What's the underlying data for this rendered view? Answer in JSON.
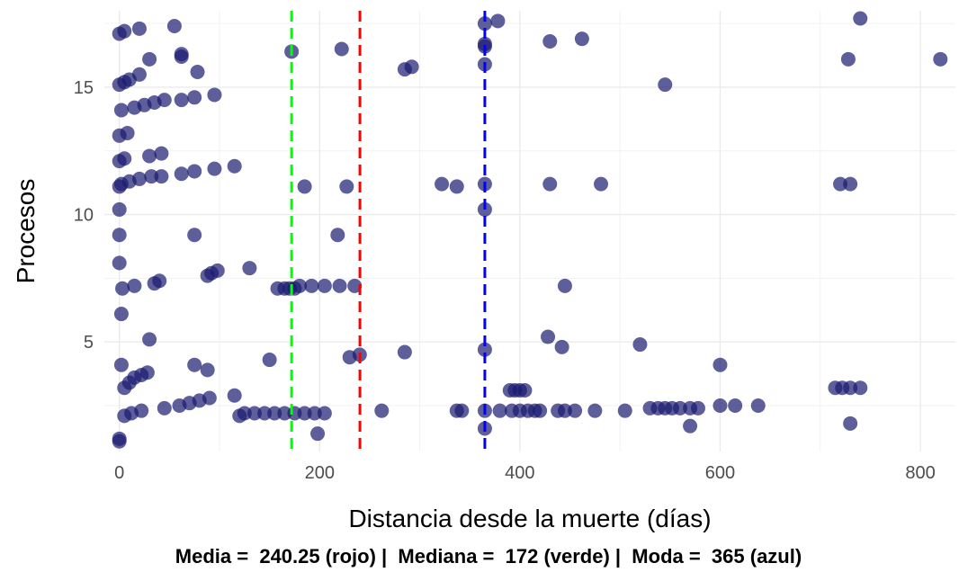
{
  "chart_data": {
    "type": "scatter",
    "xlabel": "Distancia desde la muerte (días)",
    "ylabel": "Procesos",
    "xlim": [
      -15,
      835
    ],
    "ylim": [
      0.7,
      18
    ],
    "x_ticks": [
      0,
      200,
      400,
      600,
      800
    ],
    "y_ticks": [
      5,
      10,
      15
    ],
    "grid": true,
    "point_color": "#191970",
    "point_opacity": 0.7,
    "reference_lines": [
      {
        "label": "Media",
        "value": 240.25,
        "color": "#ff0000"
      },
      {
        "label": "Mediana",
        "value": 172,
        "color": "#00ff00"
      },
      {
        "label": "Moda",
        "value": 365,
        "color": "#0000ff"
      }
    ],
    "caption": "Media =  240.25 (rojo) |  Mediana =  172 (verde) |  Moda =  365 (azul)",
    "points": [
      [
        0,
        17.1
      ],
      [
        5,
        17.2
      ],
      [
        20,
        17.3
      ],
      [
        55,
        17.4
      ],
      [
        365,
        17.5
      ],
      [
        378,
        17.6
      ],
      [
        740,
        17.7
      ],
      [
        172,
        16.4
      ],
      [
        222,
        16.5
      ],
      [
        365,
        16.6
      ],
      [
        365,
        16.7
      ],
      [
        430,
        16.8
      ],
      [
        462,
        16.9
      ],
      [
        30,
        16.1
      ],
      [
        62,
        16.2
      ],
      [
        62,
        16.3
      ],
      [
        728,
        16.1
      ],
      [
        820,
        16.1
      ],
      [
        0,
        15.1
      ],
      [
        5,
        15.2
      ],
      [
        10,
        15.3
      ],
      [
        20,
        15.5
      ],
      [
        78,
        15.6
      ],
      [
        285,
        15.7
      ],
      [
        292,
        15.8
      ],
      [
        365,
        15.9
      ],
      [
        545,
        15.1
      ],
      [
        2,
        14.1
      ],
      [
        15,
        14.2
      ],
      [
        25,
        14.3
      ],
      [
        35,
        14.4
      ],
      [
        45,
        14.5
      ],
      [
        62,
        14.5
      ],
      [
        75,
        14.6
      ],
      [
        95,
        14.7
      ],
      [
        0,
        13.1
      ],
      [
        8,
        13.2
      ],
      [
        0,
        12.1
      ],
      [
        5,
        12.2
      ],
      [
        30,
        12.3
      ],
      [
        42,
        12.4
      ],
      [
        115,
        11.9
      ],
      [
        0,
        11.1
      ],
      [
        2,
        11.2
      ],
      [
        10,
        11.3
      ],
      [
        20,
        11.4
      ],
      [
        32,
        11.5
      ],
      [
        42,
        11.5
      ],
      [
        62,
        11.6
      ],
      [
        75,
        11.7
      ],
      [
        95,
        11.8
      ],
      [
        185,
        11.1
      ],
      [
        227,
        11.1
      ],
      [
        322,
        11.2
      ],
      [
        337,
        11.1
      ],
      [
        365,
        11.2
      ],
      [
        430,
        11.2
      ],
      [
        481,
        11.2
      ],
      [
        720,
        11.2
      ],
      [
        730,
        11.2
      ],
      [
        0,
        10.2
      ],
      [
        365,
        10.2
      ],
      [
        0,
        9.2
      ],
      [
        75,
        9.2
      ],
      [
        218,
        9.2
      ],
      [
        0,
        8.1
      ],
      [
        130,
        7.9
      ],
      [
        88,
        7.6
      ],
      [
        92,
        7.7
      ],
      [
        98,
        7.8
      ],
      [
        3,
        7.1
      ],
      [
        15,
        7.2
      ],
      [
        35,
        7.3
      ],
      [
        40,
        7.4
      ],
      [
        158,
        7.1
      ],
      [
        165,
        7.1
      ],
      [
        170,
        7.1
      ],
      [
        175,
        7.1
      ],
      [
        180,
        7.2
      ],
      [
        192,
        7.2
      ],
      [
        205,
        7.2
      ],
      [
        220,
        7.2
      ],
      [
        235,
        7.2
      ],
      [
        445,
        7.2
      ],
      [
        2,
        6.1
      ],
      [
        30,
        5.1
      ],
      [
        428,
        5.2
      ],
      [
        520,
        4.9
      ],
      [
        150,
        4.3
      ],
      [
        285,
        4.6
      ],
      [
        230,
        4.4
      ],
      [
        240,
        4.5
      ],
      [
        365,
        4.7
      ],
      [
        442,
        4.8
      ],
      [
        600,
        4.1
      ],
      [
        2,
        4.1
      ],
      [
        75,
        4.1
      ],
      [
        88,
        3.9
      ],
      [
        5,
        3.2
      ],
      [
        10,
        3.4
      ],
      [
        15,
        3.6
      ],
      [
        22,
        3.7
      ],
      [
        28,
        3.8
      ],
      [
        390,
        3.1
      ],
      [
        395,
        3.1
      ],
      [
        400,
        3.1
      ],
      [
        405,
        3.1
      ],
      [
        715,
        3.2
      ],
      [
        722,
        3.2
      ],
      [
        730,
        3.2
      ],
      [
        740,
        3.2
      ],
      [
        115,
        2.9
      ],
      [
        90,
        2.8
      ],
      [
        80,
        2.7
      ],
      [
        70,
        2.6
      ],
      [
        60,
        2.5
      ],
      [
        45,
        2.4
      ],
      [
        5,
        2.1
      ],
      [
        12,
        2.2
      ],
      [
        22,
        2.3
      ],
      [
        120,
        2.1
      ],
      [
        125,
        2.2
      ],
      [
        135,
        2.2
      ],
      [
        145,
        2.2
      ],
      [
        155,
        2.2
      ],
      [
        165,
        2.2
      ],
      [
        175,
        2.2
      ],
      [
        185,
        2.2
      ],
      [
        195,
        2.2
      ],
      [
        205,
        2.2
      ],
      [
        262,
        2.3
      ],
      [
        337,
        2.3
      ],
      [
        342,
        2.3
      ],
      [
        365,
        2.3
      ],
      [
        380,
        2.3
      ],
      [
        392,
        2.3
      ],
      [
        400,
        2.3
      ],
      [
        408,
        2.3
      ],
      [
        415,
        2.3
      ],
      [
        420,
        2.3
      ],
      [
        438,
        2.3
      ],
      [
        445,
        2.3
      ],
      [
        455,
        2.3
      ],
      [
        475,
        2.3
      ],
      [
        505,
        2.3
      ],
      [
        530,
        2.4
      ],
      [
        538,
        2.4
      ],
      [
        545,
        2.4
      ],
      [
        552,
        2.4
      ],
      [
        560,
        2.4
      ],
      [
        570,
        2.4
      ],
      [
        578,
        2.4
      ],
      [
        600,
        2.5
      ],
      [
        615,
        2.5
      ],
      [
        638,
        2.5
      ],
      [
        0,
        1.1
      ],
      [
        0,
        1.2
      ],
      [
        198,
        1.4
      ],
      [
        365,
        1.6
      ],
      [
        570,
        1.7
      ],
      [
        730,
        1.8
      ]
    ]
  }
}
